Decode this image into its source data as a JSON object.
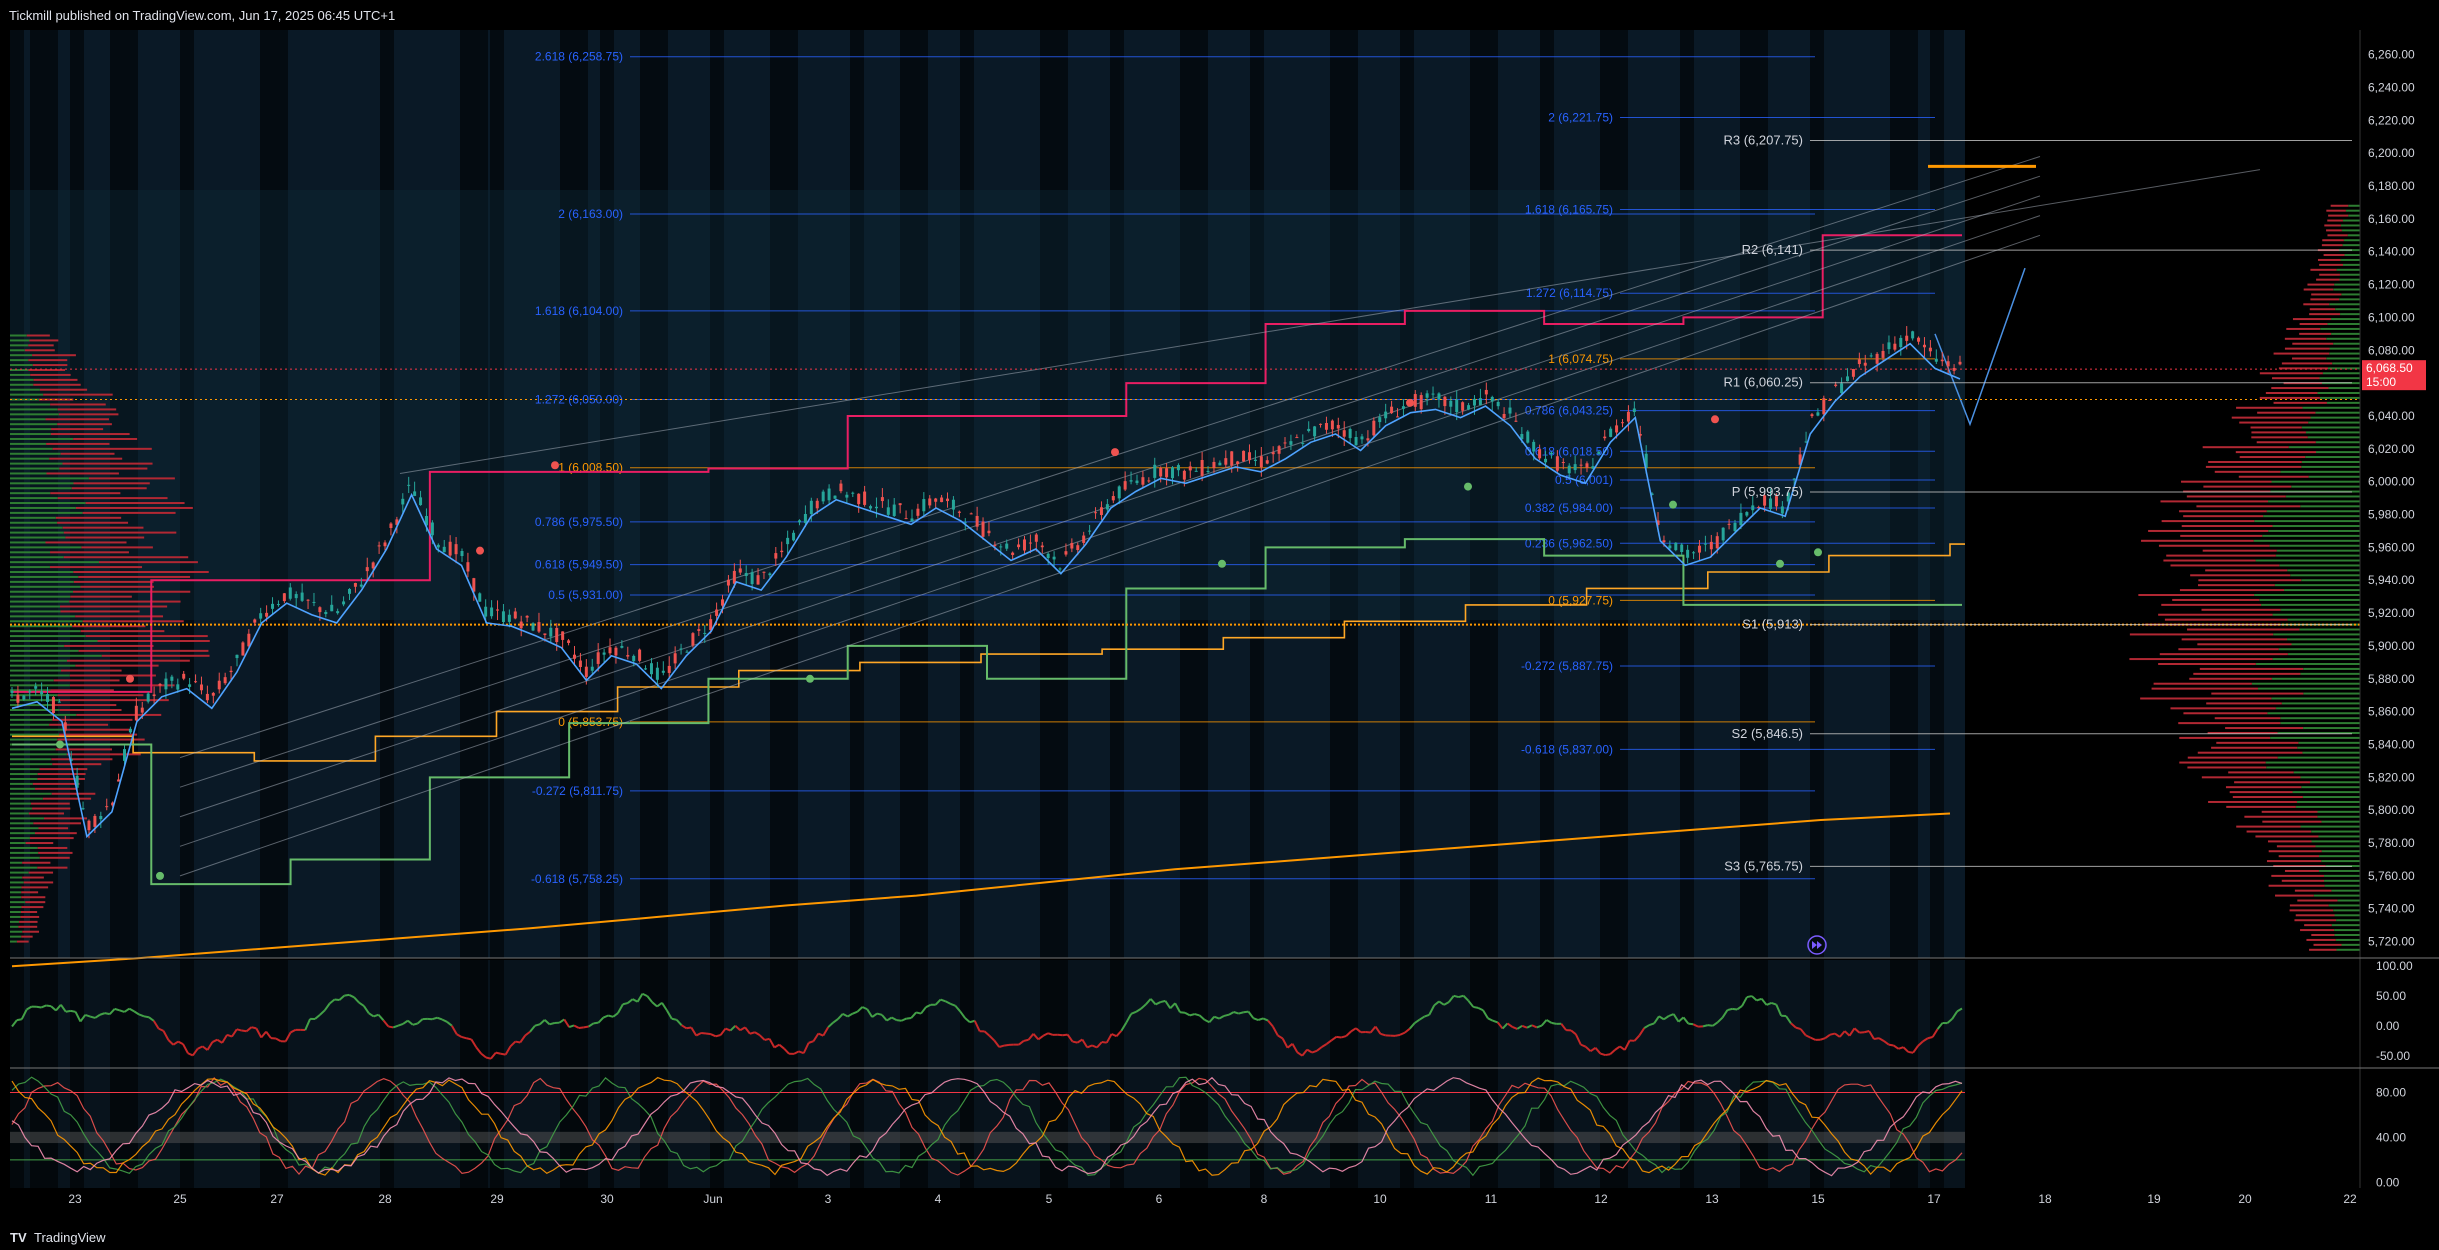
{
  "header": {
    "publisher": "Tickmill published on TradingView.com, Jun 17, 2025 06:45 UTC+1"
  },
  "footer": {
    "logo": "TV",
    "brand": "TradingView"
  },
  "chart_data": {
    "type": "line",
    "main": {
      "y_ticks": [
        6260,
        6240,
        6220,
        6200,
        6180,
        6160,
        6140,
        6120,
        6100,
        6080,
        6060,
        6040,
        6020,
        6000,
        5980,
        5960,
        5940,
        5920,
        5900,
        5880,
        5860,
        5840,
        5820,
        5800,
        5780,
        5760,
        5740,
        5720
      ],
      "y_tick_labels": [
        "6,260.00",
        "6,240.00",
        "6,220.00",
        "6,200.00",
        "6,180.00",
        "6,160.00",
        "6,140.00",
        "6,120.00",
        "6,100.00",
        "6,080.00",
        "6,060.00",
        "6,040.00",
        "6,020.00",
        "6,000.00",
        "5,980.00",
        "5,960.00",
        "5,940.00",
        "5,920.00",
        "5,900.00",
        "5,880.00",
        "5,860.00",
        "5,840.00",
        "5,820.00",
        "5,800.00",
        "5,780.00",
        "5,760.00",
        "5,740.00",
        "5,720.00"
      ],
      "ylim": [
        5710,
        6275
      ],
      "current_price": {
        "value": 6068.5,
        "label": "6,068.50",
        "timer": "15:00",
        "color": "#f23645"
      },
      "x_labels": [
        "23",
        "25",
        "27",
        "28",
        "29",
        "30",
        "Jun",
        "3",
        "4",
        "5",
        "6",
        "8",
        "10",
        "11",
        "12",
        "13",
        "15",
        "17",
        "18",
        "19",
        "20",
        "22"
      ],
      "fib_left": [
        {
          "label": "2.618 (6,258.75)",
          "value": 6258.75
        },
        {
          "label": "2 (6,163.00)",
          "value": 6163.0
        },
        {
          "label": "1.618 (6,104.00)",
          "value": 6104.0
        },
        {
          "label": "1.272 (6,050.00)",
          "value": 6050.0
        },
        {
          "label": "1 (6,008.50)",
          "value": 6008.5
        },
        {
          "label": "0.786 (5,975.50)",
          "value": 5975.5
        },
        {
          "label": "0.618 (5,949.50)",
          "value": 5949.5
        },
        {
          "label": "0.5 (5,931.00)",
          "value": 5931.0
        },
        {
          "label": "0 (5,853.75)",
          "value": 5853.75
        },
        {
          "label": "-0.272 (5,811.75)",
          "value": 5811.75
        },
        {
          "label": "-0.618 (5,758.25)",
          "value": 5758.25
        }
      ],
      "fib_right": [
        {
          "label": "2 (6,221.75)",
          "value": 6221.75
        },
        {
          "label": "1.618 (6,165.75)",
          "value": 6165.75
        },
        {
          "label": "1.272 (6,114.75)",
          "value": 6114.75
        },
        {
          "label": "1 (6,074.75)",
          "value": 6074.75
        },
        {
          "label": "0.786 (6,043.25)",
          "value": 6043.25
        },
        {
          "label": "0.618 (6,018.50)",
          "value": 6018.5
        },
        {
          "label": "0.5 (6,001)",
          "value": 6001.0
        },
        {
          "label": "0.382 (5,984.00)",
          "value": 5984.0
        },
        {
          "label": "0.236 (5,962.50)",
          "value": 5962.5
        },
        {
          "label": "0 (5,927.75)",
          "value": 5927.75
        },
        {
          "label": "-0.272 (5,887.75)",
          "value": 5887.75
        },
        {
          "label": "-0.618 (5,837.00)",
          "value": 5837.0
        }
      ],
      "pivots": [
        {
          "label": "R3 (6,207.75)",
          "value": 6207.75
        },
        {
          "label": "R2 (6,141)",
          "value": 6141.0
        },
        {
          "label": "R1 (6,060.25)",
          "value": 6060.25
        },
        {
          "label": "P (5,993.75)",
          "value": 5993.75
        },
        {
          "label": "S1 (5,913)",
          "value": 5913.0
        },
        {
          "label": "S2 (5,846.5)",
          "value": 5846.5
        },
        {
          "label": "S3 (5,765.75)",
          "value": 5765.75
        }
      ],
      "close_path": [
        5868,
        5872,
        5860,
        5790,
        5805,
        5860,
        5875,
        5880,
        5868,
        5890,
        5920,
        5932,
        5925,
        5920,
        5940,
        5965,
        5998,
        5965,
        5955,
        5920,
        5918,
        5912,
        5905,
        5885,
        5900,
        5895,
        5880,
        5900,
        5915,
        5945,
        5940,
        5960,
        5985,
        5995,
        5990,
        5985,
        5980,
        5990,
        5982,
        5970,
        5958,
        5965,
        5950,
        5968,
        5990,
        6000,
        6008,
        6005,
        6010,
        6015,
        6012,
        6020,
        6030,
        6035,
        6025,
        6040,
        6048,
        6050,
        6045,
        6052,
        6040,
        6020,
        6010,
        6005,
        6030,
        6045,
        5970,
        5955,
        5960,
        5975,
        5990,
        5985,
        6035,
        6055,
        6070,
        6080,
        6090,
        6075,
        6068.5
      ],
      "orange_long_ma": [
        5705,
        5710,
        5716,
        5722,
        5728,
        5735,
        5742,
        5748,
        5756,
        5764,
        5770,
        5776,
        5782,
        5788,
        5794,
        5798
      ],
      "orange_mid_ma": [
        5845,
        5835,
        5830,
        5845,
        5860,
        5875,
        5885,
        5890,
        5895,
        5898,
        5905,
        5915,
        5925,
        5935,
        5945,
        5955,
        5962
      ],
      "vp_right": {
        "center": 5915,
        "color_up": "#2e7d32",
        "color_down": "#b22833"
      }
    },
    "rsi": {
      "y_ticks": [
        100,
        50,
        0,
        -50
      ],
      "y_tick_labels": [
        "100.00",
        "50.00",
        "0.00",
        "-50.00"
      ],
      "ylim": [
        -70,
        110
      ]
    },
    "stoch": {
      "y_ticks": [
        80,
        40,
        0
      ],
      "y_tick_labels": [
        "80.00",
        "40.00",
        "0.00"
      ],
      "ylim": [
        -5,
        100
      ]
    }
  },
  "markers": {
    "replay_icon": "fast-forward-icon"
  }
}
